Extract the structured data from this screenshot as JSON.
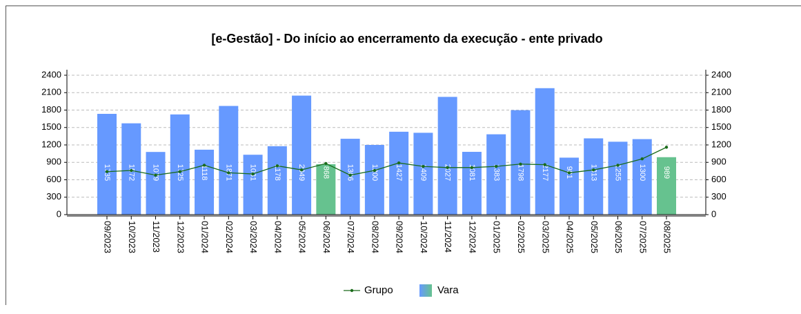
{
  "chart_data": {
    "type": "bar_line",
    "title": "[e-Gestão]  - Do início ao encerramento da execução - ente privado",
    "categories": [
      "09/2023",
      "10/2023",
      "11/2023",
      "12/2023",
      "01/2024",
      "02/2024",
      "03/2024",
      "04/2024",
      "05/2024",
      "06/2024",
      "07/2024",
      "08/2024",
      "09/2024",
      "10/2024",
      "11/2024",
      "12/2024",
      "01/2025",
      "02/2025",
      "03/2025",
      "04/2025",
      "05/2025",
      "06/2025",
      "07/2025",
      "08/2025"
    ],
    "series": [
      {
        "name": "Vara",
        "type": "bar",
        "color": "#6699ff",
        "colors": [
          "#6699ff",
          "#6699ff",
          "#6699ff",
          "#6699ff",
          "#6699ff",
          "#6699ff",
          "#6699ff",
          "#6699ff",
          "#6699ff",
          "#66c28f",
          "#6699ff",
          "#6699ff",
          "#6699ff",
          "#6699ff",
          "#6699ff",
          "#6699ff",
          "#6699ff",
          "#6699ff",
          "#6699ff",
          "#6699ff",
          "#6699ff",
          "#6699ff",
          "#6699ff",
          "#66c28f"
        ],
        "values": [
          1735,
          1572,
          1079,
          1725,
          1118,
          1871,
          1031,
          1178,
          2049,
          868,
          1306,
          1200,
          1427,
          1409,
          2027,
          1081,
          1383,
          1798,
          2177,
          981,
          1313,
          1255,
          1300,
          989
        ]
      },
      {
        "name": "Grupo",
        "type": "line",
        "color": "#1a6b1a",
        "values": [
          740,
          760,
          680,
          740,
          850,
          720,
          700,
          840,
          770,
          880,
          680,
          760,
          890,
          830,
          810,
          810,
          830,
          870,
          860,
          720,
          770,
          850,
          960,
          1160
        ]
      }
    ],
    "ylim": [
      0,
      2400
    ],
    "yticks": [
      0,
      300,
      600,
      900,
      1200,
      1500,
      1800,
      2100,
      2400
    ],
    "y2lim": [
      0,
      2400
    ],
    "y2ticks": [
      0,
      300,
      600,
      900,
      1200,
      1500,
      1800,
      2100,
      2400
    ],
    "grid": true,
    "legend": "bottom"
  }
}
